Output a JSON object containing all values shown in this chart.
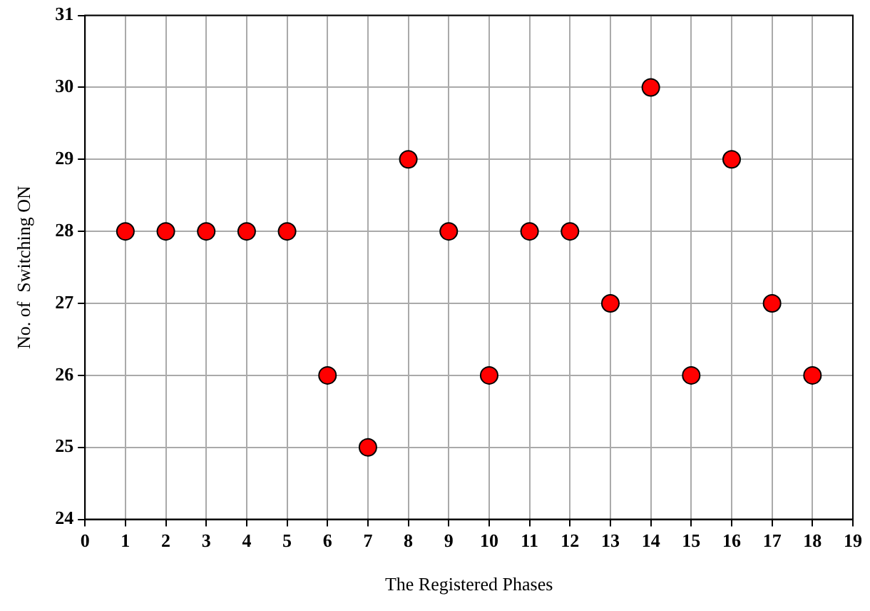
{
  "chart_data": {
    "type": "scatter",
    "xlabel": "The Registered Phases",
    "ylabel": "No. of  Switching ON",
    "x": [
      1,
      2,
      3,
      4,
      5,
      6,
      7,
      8,
      9,
      10,
      11,
      12,
      13,
      14,
      15,
      16,
      17,
      18
    ],
    "series": [
      {
        "color": "#ff0000",
        "values": [
          28,
          28,
          28,
          28,
          28,
          26,
          25,
          29,
          28,
          26,
          28,
          28,
          27,
          30,
          26,
          29,
          27,
          26
        ]
      }
    ],
    "xlim": [
      0,
      19
    ],
    "xticks": [
      0,
      1,
      2,
      3,
      4,
      5,
      6,
      7,
      8,
      9,
      10,
      11,
      12,
      13,
      14,
      15,
      16,
      17,
      18,
      19
    ],
    "ylim": [
      24,
      31
    ],
    "yticks": [
      24,
      25,
      26,
      27,
      28,
      29,
      30,
      31
    ],
    "grid": true,
    "legend": false,
    "marker": "circle"
  }
}
